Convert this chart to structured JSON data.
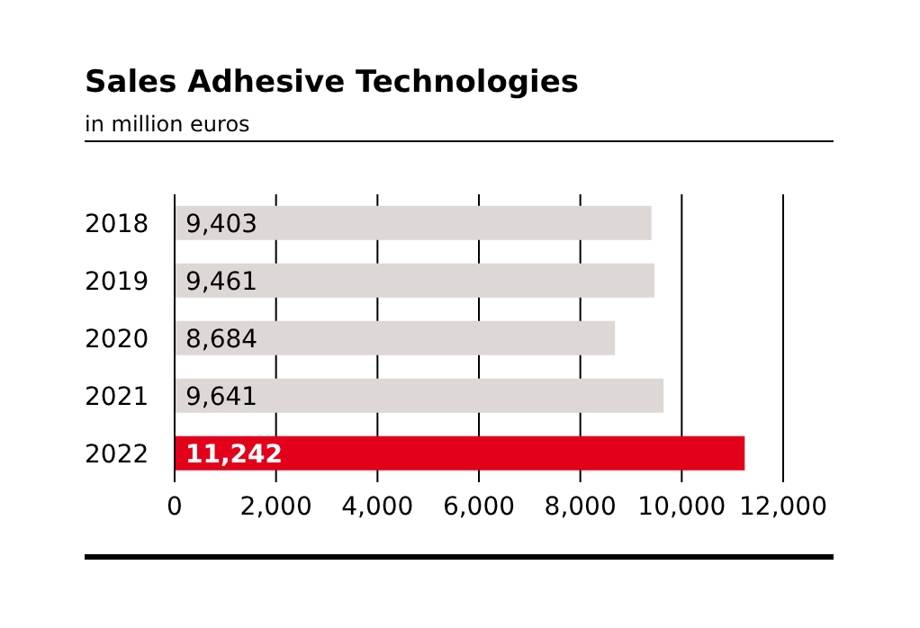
{
  "chart_data": {
    "type": "bar",
    "orientation": "horizontal",
    "title": "Sales Adhesive Technologies",
    "subtitle": "in million euros",
    "categories": [
      "2018",
      "2019",
      "2020",
      "2021",
      "2022"
    ],
    "values": [
      9403,
      9461,
      8684,
      9641,
      11242
    ],
    "colors": [
      "#ddd7d5",
      "#ddd7d5",
      "#ddd7d5",
      "#ddd7d5",
      "#e2001a"
    ],
    "value_labels": [
      "9,403",
      "9,461",
      "8,684",
      "9,641",
      "11,242"
    ],
    "xlim": [
      0,
      12000
    ],
    "xticks": [
      0,
      {
        "value": 2000,
        "label": "2,000"
      },
      {
        "value": 4000,
        "label": "4,000"
      },
      {
        "value": 6000,
        "label": "6,000"
      },
      {
        "value": 8000,
        "label": "8,000"
      },
      {
        "value": 10000,
        "label": "10,000"
      },
      {
        "value": 12000,
        "label": "12,000"
      }
    ],
    "grid": "x",
    "legend": false
  }
}
